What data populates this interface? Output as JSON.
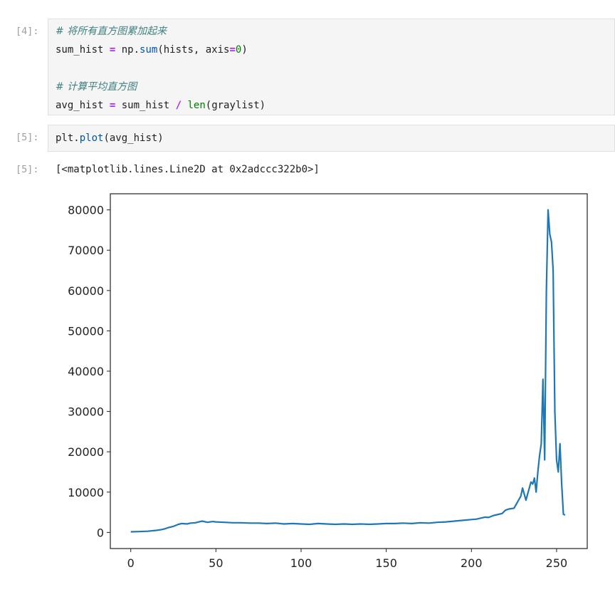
{
  "cells": [
    {
      "prompt": "[4]:",
      "lines": {
        "l1_comment": "# 将所有直方图累加起来",
        "l2_a": "sum_hist ",
        "l2_op": "=",
        "l2_b": " np.",
        "l2_call": "sum",
        "l2_c": "(hists, axis",
        "l2_op2": "=",
        "l2_num": "0",
        "l2_d": ")",
        "l3_comment": "# 计算平均直方图",
        "l4_a": "avg_hist ",
        "l4_op": "=",
        "l4_b": " sum_hist ",
        "l4_op2": "/",
        "l4_sp": " ",
        "l4_builtin": "len",
        "l4_c": "(graylist)"
      }
    },
    {
      "prompt": "[5]:",
      "lines": {
        "l1_a": "plt.",
        "l1_call": "plot",
        "l1_b": "(avg_hist)"
      }
    }
  ],
  "output": {
    "prompt": "[5]:",
    "text": "[<matplotlib.lines.Line2D at 0x2adccc322b0>]"
  },
  "chart_data": {
    "type": "line",
    "color": "#1f77b4",
    "xlim": [
      -12,
      268
    ],
    "ylim": [
      -4000,
      84000
    ],
    "xticks": [
      0,
      50,
      100,
      150,
      200,
      250
    ],
    "yticks": [
      0,
      10000,
      20000,
      30000,
      40000,
      50000,
      60000,
      70000,
      80000
    ],
    "xtick_labels": [
      "0",
      "50",
      "100",
      "150",
      "200",
      "250"
    ],
    "ytick_labels": [
      "0",
      "10000",
      "20000",
      "30000",
      "40000",
      "50000",
      "60000",
      "70000",
      "80000"
    ],
    "series": [
      {
        "x": [
          0,
          5,
          10,
          15,
          18,
          20,
          22,
          25,
          28,
          30,
          33,
          35,
          38,
          40,
          42,
          45,
          48,
          50,
          55,
          60,
          65,
          70,
          75,
          80,
          85,
          90,
          95,
          100,
          105,
          110,
          115,
          120,
          125,
          130,
          135,
          140,
          145,
          150,
          155,
          160,
          165,
          170,
          175,
          180,
          185,
          190,
          195,
          200,
          203,
          205,
          208,
          210,
          213,
          215,
          218,
          220,
          222,
          225,
          227,
          229,
          230,
          231,
          232,
          234,
          235,
          236,
          237,
          238,
          239,
          240,
          241,
          242,
          243,
          244,
          245,
          246,
          247,
          248,
          249,
          250,
          251,
          252,
          253,
          254,
          255
        ],
        "y": [
          150,
          200,
          300,
          500,
          700,
          900,
          1200,
          1500,
          2000,
          2200,
          2100,
          2300,
          2400,
          2600,
          2800,
          2500,
          2700,
          2600,
          2500,
          2400,
          2400,
          2300,
          2300,
          2200,
          2300,
          2100,
          2200,
          2100,
          2000,
          2200,
          2100,
          2000,
          2100,
          2000,
          2100,
          2000,
          2100,
          2200,
          2200,
          2300,
          2200,
          2400,
          2300,
          2500,
          2600,
          2800,
          3000,
          3200,
          3300,
          3500,
          3800,
          3700,
          4200,
          4400,
          4700,
          5500,
          5800,
          6000,
          7500,
          9000,
          11000,
          9500,
          8000,
          11000,
          12500,
          12000,
          13500,
          10000,
          15000,
          19000,
          22000,
          38000,
          18000,
          60000,
          80000,
          74000,
          72000,
          65000,
          30000,
          18000,
          15000,
          22000,
          12000,
          4500,
          4300
        ]
      }
    ]
  }
}
